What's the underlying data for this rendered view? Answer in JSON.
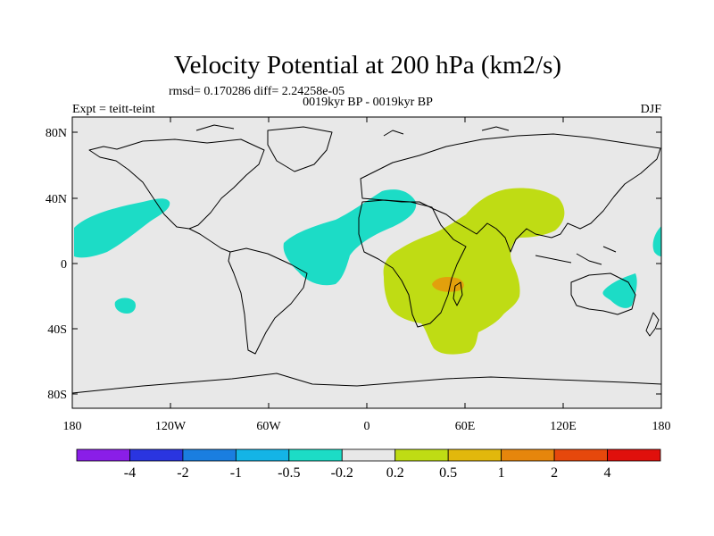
{
  "title": "Velocity Potential at 200 hPa (km2/s)",
  "rmsd_line": "rmsd= 0.170286 diff= 2.24258e-05",
  "expt_label": "Expt = teitt-teint",
  "period_label": "0019kyr BP - 0019kyr BP",
  "season": "DJF",
  "lat_ticks": [
    "80N",
    "40N",
    "0",
    "40S",
    "80S"
  ],
  "lon_ticks": [
    "180",
    "120W",
    "60W",
    "0",
    "60E",
    "120E",
    "180"
  ],
  "colorbar": {
    "colors": [
      "#8a1ee8",
      "#2a35e0",
      "#1a7ee0",
      "#14b4e6",
      "#1cdcc6",
      "#e8e8e8",
      "#bfdc14",
      "#e2b80c",
      "#e6860c",
      "#e6480c",
      "#e0100c"
    ],
    "labels": [
      "-4",
      "-2",
      "-1",
      "-0.5",
      "-0.2",
      "0.2",
      "0.5",
      "1",
      "2",
      "4"
    ]
  },
  "colors": {
    "ocean_bg": "#e8e8e8",
    "teal": "#1cdcc6",
    "lime": "#bfdc14",
    "orange": "#e2a00c"
  }
}
